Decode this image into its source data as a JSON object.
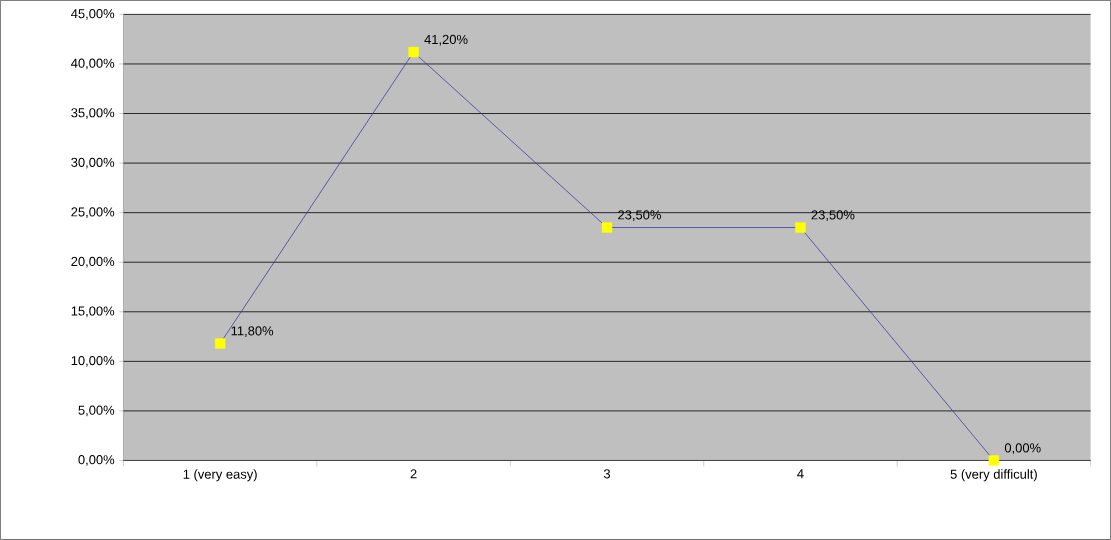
{
  "chart_data": {
    "type": "line",
    "categories": [
      "1 (very easy)",
      "2",
      "3",
      "4",
      "5 (very difficult)"
    ],
    "values": [
      11.8,
      41.2,
      23.5,
      23.5,
      0
    ],
    "value_labels": [
      "11,80%",
      "41,20%",
      "23,50%",
      "23,50%",
      "0,00%"
    ],
    "color": "#3f3f9f",
    "colors": [
      "#ffff00",
      "#ffff00",
      "#ffff00",
      "#ffff00",
      "#ffff00"
    ],
    "marker": "square",
    "ylim": [
      0,
      45
    ],
    "yticks": [
      {
        "value": 0,
        "label": "0,00%"
      },
      {
        "value": 5,
        "label": "5,00%"
      },
      {
        "value": 10,
        "label": "10,00%"
      },
      {
        "value": 15,
        "label": "15,00%"
      },
      {
        "value": 20,
        "label": "20,00%"
      },
      {
        "value": 25,
        "label": "25,00%"
      },
      {
        "value": 30,
        "label": "30,00%"
      },
      {
        "value": 35,
        "label": "35,00%"
      },
      {
        "value": 40,
        "label": "40,00%"
      },
      {
        "value": 45,
        "label": "45,00%"
      }
    ],
    "grid": "y"
  }
}
